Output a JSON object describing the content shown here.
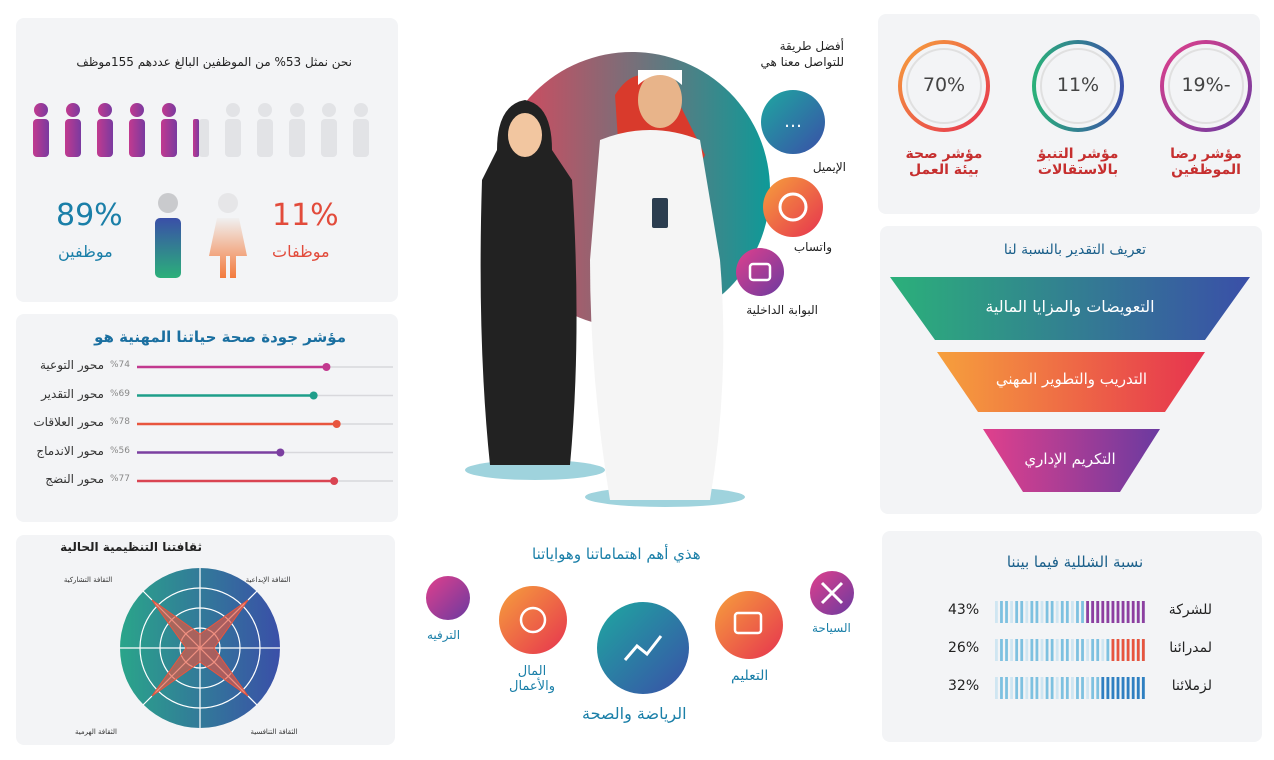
{
  "employees": {
    "title": "نحن نمثل 53% من الموظفين  البالغ عددهم 155موظف",
    "male_percent": "89%",
    "male_label": "موظفين",
    "female_percent": "11%",
    "female_label": "موظفات"
  },
  "quality": {
    "title": "مؤشر جودة صحة حياتنا المهنية هو",
    "xlim": [
      0,
      100
    ],
    "items": [
      {
        "label": "محور التوعية",
        "value": 74,
        "value_label": "%74",
        "color": "#c2398f"
      },
      {
        "label": "محور التقدير",
        "value": 69,
        "value_label": "%69",
        "color": "#1e9e8a"
      },
      {
        "label": "محور العلاقات",
        "value": 78,
        "value_label": "%78",
        "color": "#e8553e"
      },
      {
        "label": "محور الاندماج",
        "value": 56,
        "value_label": "%56",
        "color": "#7b3fa0"
      },
      {
        "label": "محور النضج",
        "value": 77,
        "value_label": "%77",
        "color": "#d94452"
      }
    ]
  },
  "culture": {
    "title": "ثقافتنا التنظيمية الحالية",
    "rlim": [
      0,
      100
    ],
    "axes": [
      {
        "label": "الثقافة التشاركية",
        "value": 85
      },
      {
        "label": "الثقافة الإبداعية",
        "value": 85
      },
      {
        "label": "الثقافة التنافسية",
        "value": 85
      },
      {
        "label": "الثقافة الهرمية",
        "value": 85
      }
    ]
  },
  "contact": {
    "title": "أفضل طريقة للتواصل معنا هي",
    "channels": [
      "الإيميل",
      "واتساب",
      "البوابة الداخلية"
    ]
  },
  "interests": {
    "title": "هذي أهم اهتماماتنا وهواياتنا",
    "items": [
      "الترفيه",
      "المال والأعمال",
      "الرياضة والصحة",
      "التعليم",
      "السياحة"
    ]
  },
  "indicators": [
    {
      "value": "70%",
      "label": "مؤشر صحة بيئة العمل"
    },
    {
      "value": "11%",
      "label": "مؤشر التنبؤ بالاستقالات"
    },
    {
      "value": "-19%",
      "label": "مؤشر رضا الموظفين"
    }
  ],
  "appreciation": {
    "title": "تعريف التقدير بالنسبة لنا",
    "levels": [
      "التعويضات والمزايا المالية",
      "التدريب والتطوير المهني",
      "التكريم الإداري"
    ]
  },
  "cliques": {
    "title": "نسبة الشللية فيما بيننا",
    "xlim": [
      0,
      100
    ],
    "rows": [
      {
        "label": "للشركة",
        "value": 43,
        "value_label": "43%",
        "color": "#8e3fa0"
      },
      {
        "label": "لمدرائنا",
        "value": 26,
        "value_label": "26%",
        "color": "#e8553e"
      },
      {
        "label": "لزملائنا",
        "value": 32,
        "value_label": "32%",
        "color": "#2f7fc1"
      }
    ]
  }
}
